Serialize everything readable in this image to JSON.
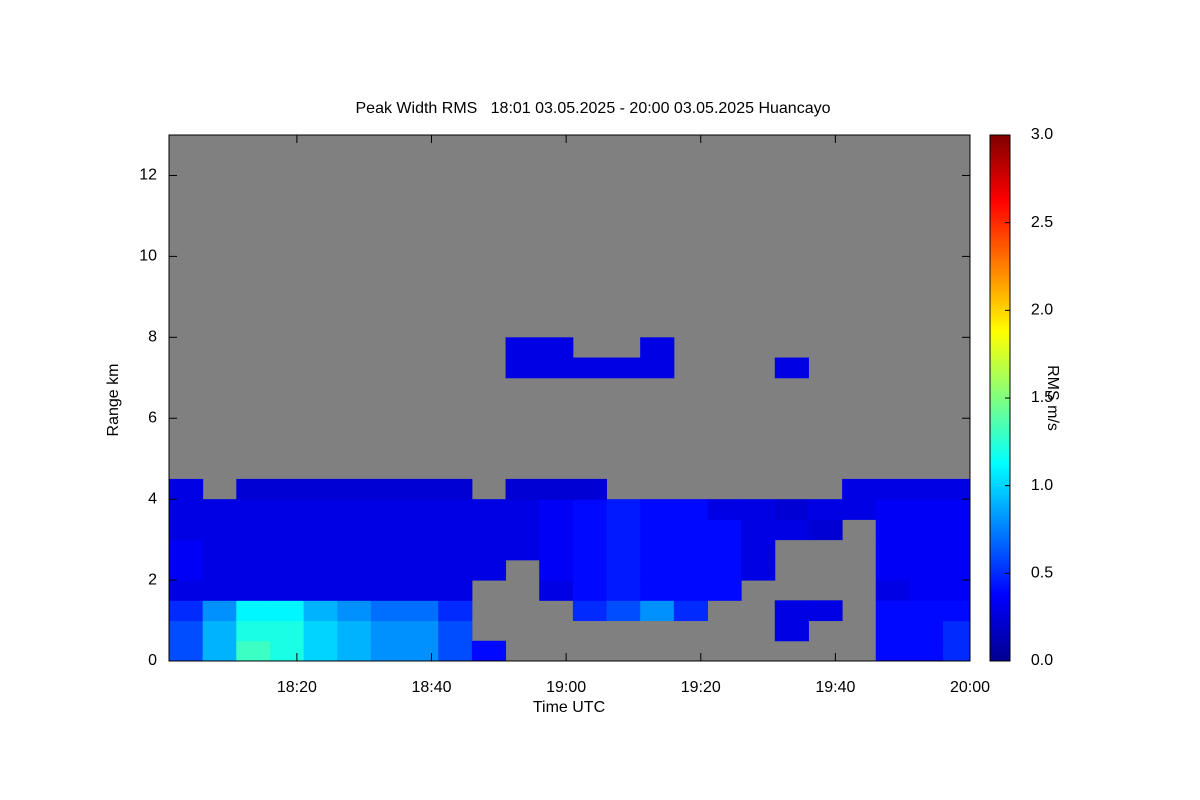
{
  "chart_data": {
    "type": "heatmap",
    "title": "Peak Width RMS   18:01 03.05.2025 - 20:00 03.05.2025 Huancayo",
    "x_label": "Time UTC",
    "y_label": "Range km",
    "colorbar_label": "RMS m/s",
    "xlim": [
      1081,
      1200
    ],
    "xticks": [
      {
        "value": 1100,
        "label": "18:20"
      },
      {
        "value": 1120,
        "label": "18:40"
      },
      {
        "value": 1140,
        "label": "19:00"
      },
      {
        "value": 1160,
        "label": "19:20"
      },
      {
        "value": 1180,
        "label": "19:40"
      },
      {
        "value": 1200,
        "label": "20:00"
      }
    ],
    "ylim": [
      0,
      13
    ],
    "yticks": [
      0,
      2,
      4,
      6,
      8,
      10,
      12
    ],
    "zlim": [
      0,
      3
    ],
    "zticks": [
      {
        "value": 0,
        "label": "0.0"
      },
      0.5,
      {
        "value": 1,
        "label": "1.0"
      },
      1.5,
      {
        "value": 2,
        "label": "2.0"
      },
      2.5,
      {
        "value": 3,
        "label": "3.0"
      }
    ],
    "colormap": "jet",
    "missing_color": "#808080",
    "x_bins": [
      1081,
      1086,
      1091,
      1096,
      1101,
      1106,
      1111,
      1116,
      1121,
      1126,
      1131,
      1136,
      1141,
      1146,
      1151,
      1156,
      1161,
      1166,
      1171,
      1176,
      1181,
      1186,
      1191,
      1196,
      1200
    ],
    "y_bins": [
      0,
      0.5,
      1,
      1.5,
      2,
      2.5,
      3,
      3.5,
      4,
      4.5,
      5,
      5.5,
      6,
      6.5,
      7,
      7.5,
      8,
      8.5,
      9,
      9.5,
      10,
      10.5,
      11,
      11.5,
      12,
      12.5,
      13
    ],
    "z": [
      [
        0.6,
        0.9,
        1.3,
        1.2,
        1.0,
        0.9,
        0.8,
        0.8,
        0.6,
        0.4,
        null,
        null,
        null,
        null,
        null,
        null,
        null,
        null,
        null,
        null,
        null,
        0.4,
        0.4,
        0.5
      ],
      [
        0.6,
        0.9,
        1.2,
        1.2,
        1.0,
        0.9,
        0.8,
        0.8,
        0.6,
        null,
        null,
        null,
        null,
        null,
        null,
        null,
        null,
        null,
        0.3,
        null,
        null,
        0.4,
        0.4,
        0.5
      ],
      [
        0.5,
        0.8,
        1.1,
        1.1,
        0.9,
        0.8,
        0.7,
        0.7,
        0.5,
        null,
        null,
        null,
        0.5,
        0.6,
        0.8,
        0.5,
        null,
        null,
        0.3,
        0.3,
        null,
        0.4,
        0.4,
        0.4
      ],
      [
        0.3,
        0.3,
        0.3,
        0.3,
        0.3,
        0.3,
        0.3,
        0.3,
        0.3,
        null,
        null,
        0.3,
        0.4,
        0.45,
        0.4,
        0.4,
        0.4,
        null,
        null,
        null,
        null,
        0.3,
        0.35,
        0.35
      ],
      [
        0.35,
        0.3,
        0.3,
        0.3,
        0.3,
        0.3,
        0.3,
        0.3,
        0.3,
        0.3,
        null,
        0.35,
        0.4,
        0.45,
        0.4,
        0.4,
        0.4,
        0.3,
        null,
        null,
        null,
        0.35,
        0.35,
        0.35
      ],
      [
        0.35,
        0.3,
        0.3,
        0.3,
        0.3,
        0.3,
        0.3,
        0.3,
        0.3,
        0.3,
        0.3,
        0.35,
        0.4,
        0.45,
        0.4,
        0.4,
        0.4,
        0.3,
        null,
        null,
        null,
        0.35,
        0.35,
        0.35
      ],
      [
        0.3,
        0.3,
        0.3,
        0.3,
        0.3,
        0.3,
        0.3,
        0.3,
        0.3,
        0.3,
        0.3,
        0.35,
        0.4,
        0.45,
        0.4,
        0.4,
        0.4,
        0.3,
        0.3,
        0.25,
        null,
        0.35,
        0.35,
        0.35
      ],
      [
        0.3,
        0.3,
        0.3,
        0.3,
        0.3,
        0.3,
        0.3,
        0.3,
        0.3,
        0.3,
        0.3,
        0.35,
        0.4,
        0.45,
        0.4,
        0.4,
        0.3,
        0.3,
        0.25,
        0.3,
        0.3,
        0.35,
        0.35,
        0.35
      ],
      [
        0.3,
        null,
        0.25,
        0.25,
        0.25,
        0.25,
        0.25,
        0.25,
        0.25,
        null,
        0.25,
        0.25,
        0.25,
        null,
        null,
        null,
        null,
        null,
        null,
        null,
        0.3,
        0.3,
        0.3,
        0.3
      ],
      [
        null,
        null,
        null,
        null,
        null,
        null,
        null,
        null,
        null,
        null,
        null,
        null,
        null,
        null,
        null,
        null,
        null,
        null,
        null,
        null,
        null,
        null,
        null,
        null
      ],
      [
        null,
        null,
        null,
        null,
        null,
        null,
        null,
        null,
        null,
        null,
        null,
        null,
        null,
        null,
        null,
        null,
        null,
        null,
        null,
        null,
        null,
        null,
        null,
        null
      ],
      [
        null,
        null,
        null,
        null,
        null,
        null,
        null,
        null,
        null,
        null,
        null,
        null,
        null,
        null,
        null,
        null,
        null,
        null,
        null,
        null,
        null,
        null,
        null,
        null
      ],
      [
        null,
        null,
        null,
        null,
        null,
        null,
        null,
        null,
        null,
        null,
        null,
        null,
        null,
        null,
        null,
        null,
        null,
        null,
        null,
        null,
        null,
        null,
        null,
        null
      ],
      [
        null,
        null,
        null,
        null,
        null,
        null,
        null,
        null,
        null,
        null,
        null,
        null,
        null,
        null,
        null,
        null,
        null,
        null,
        null,
        null,
        null,
        null,
        null,
        null
      ],
      [
        null,
        null,
        null,
        null,
        null,
        null,
        null,
        null,
        null,
        null,
        0.3,
        0.3,
        0.3,
        0.3,
        0.3,
        null,
        null,
        null,
        0.3,
        null,
        null,
        null,
        null,
        null
      ],
      [
        null,
        null,
        null,
        null,
        null,
        null,
        null,
        null,
        null,
        null,
        0.3,
        0.3,
        null,
        null,
        0.3,
        null,
        null,
        null,
        null,
        null,
        null,
        null,
        null,
        null
      ],
      [
        null,
        null,
        null,
        null,
        null,
        null,
        null,
        null,
        null,
        null,
        null,
        null,
        null,
        null,
        null,
        null,
        null,
        null,
        null,
        null,
        null,
        null,
        null,
        null
      ],
      [
        null,
        null,
        null,
        null,
        null,
        null,
        null,
        null,
        null,
        null,
        null,
        null,
        null,
        null,
        null,
        null,
        null,
        null,
        null,
        null,
        null,
        null,
        null,
        null
      ],
      [
        null,
        null,
        null,
        null,
        null,
        null,
        null,
        null,
        null,
        null,
        null,
        null,
        null,
        null,
        null,
        null,
        null,
        null,
        null,
        null,
        null,
        null,
        null,
        null
      ],
      [
        null,
        null,
        null,
        null,
        null,
        null,
        null,
        null,
        null,
        null,
        null,
        null,
        null,
        null,
        null,
        null,
        null,
        null,
        null,
        null,
        null,
        null,
        null,
        null
      ],
      [
        null,
        null,
        null,
        null,
        null,
        null,
        null,
        null,
        null,
        null,
        null,
        null,
        null,
        null,
        null,
        null,
        null,
        null,
        null,
        null,
        null,
        null,
        null,
        null
      ],
      [
        null,
        null,
        null,
        null,
        null,
        null,
        null,
        null,
        null,
        null,
        null,
        null,
        null,
        null,
        null,
        null,
        null,
        null,
        null,
        null,
        null,
        null,
        null,
        null
      ],
      [
        null,
        null,
        null,
        null,
        null,
        null,
        null,
        null,
        null,
        null,
        null,
        null,
        null,
        null,
        null,
        null,
        null,
        null,
        null,
        null,
        null,
        null,
        null,
        null
      ],
      [
        null,
        null,
        null,
        null,
        null,
        null,
        null,
        null,
        null,
        null,
        null,
        null,
        null,
        null,
        null,
        null,
        null,
        null,
        null,
        null,
        null,
        null,
        null,
        null
      ],
      [
        null,
        null,
        null,
        null,
        null,
        null,
        null,
        null,
        null,
        null,
        null,
        null,
        null,
        null,
        null,
        null,
        null,
        null,
        null,
        null,
        null,
        null,
        null,
        null
      ],
      [
        null,
        null,
        null,
        null,
        null,
        null,
        null,
        null,
        null,
        null,
        null,
        null,
        null,
        null,
        null,
        null,
        null,
        null,
        null,
        null,
        null,
        null,
        null,
        null
      ]
    ]
  }
}
